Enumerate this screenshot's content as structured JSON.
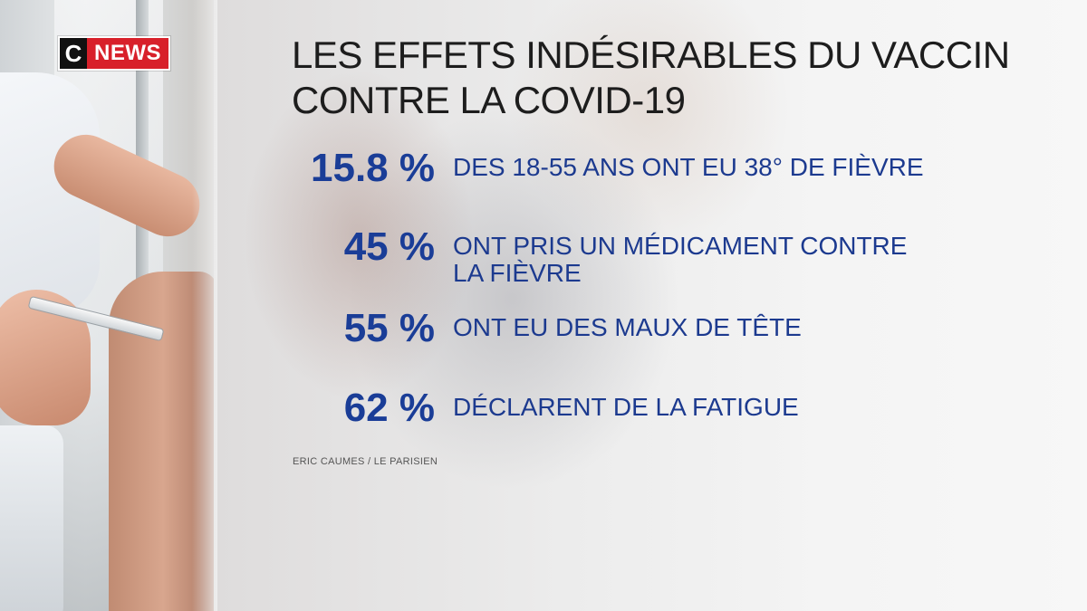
{
  "brand": {
    "logo_c": "C",
    "logo_news": "NEWS"
  },
  "title": {
    "line1": "LES EFFETS INDÉSIRABLES DU VACCIN",
    "line2": "CONTRE LA COVID-19"
  },
  "stats": [
    {
      "percent": "15.8 %",
      "text": "DES 18-55 ANS ONT EU 38° DE FIÈVRE"
    },
    {
      "percent": "45 %",
      "text": "ONT PRIS UN MÉDICAMENT CONTRE LA FIÈVRE"
    },
    {
      "percent": "55 %",
      "text": "ONT EU DES MAUX DE TÊTE"
    },
    {
      "percent": "62 %",
      "text": "DÉCLARENT DE LA FATIGUE"
    }
  ],
  "source": "ERIC CAUMES / LE PARISIEN",
  "colors": {
    "accent_blue": "#1a3d97",
    "brand_red": "#d8202a",
    "brand_black": "#111111"
  }
}
